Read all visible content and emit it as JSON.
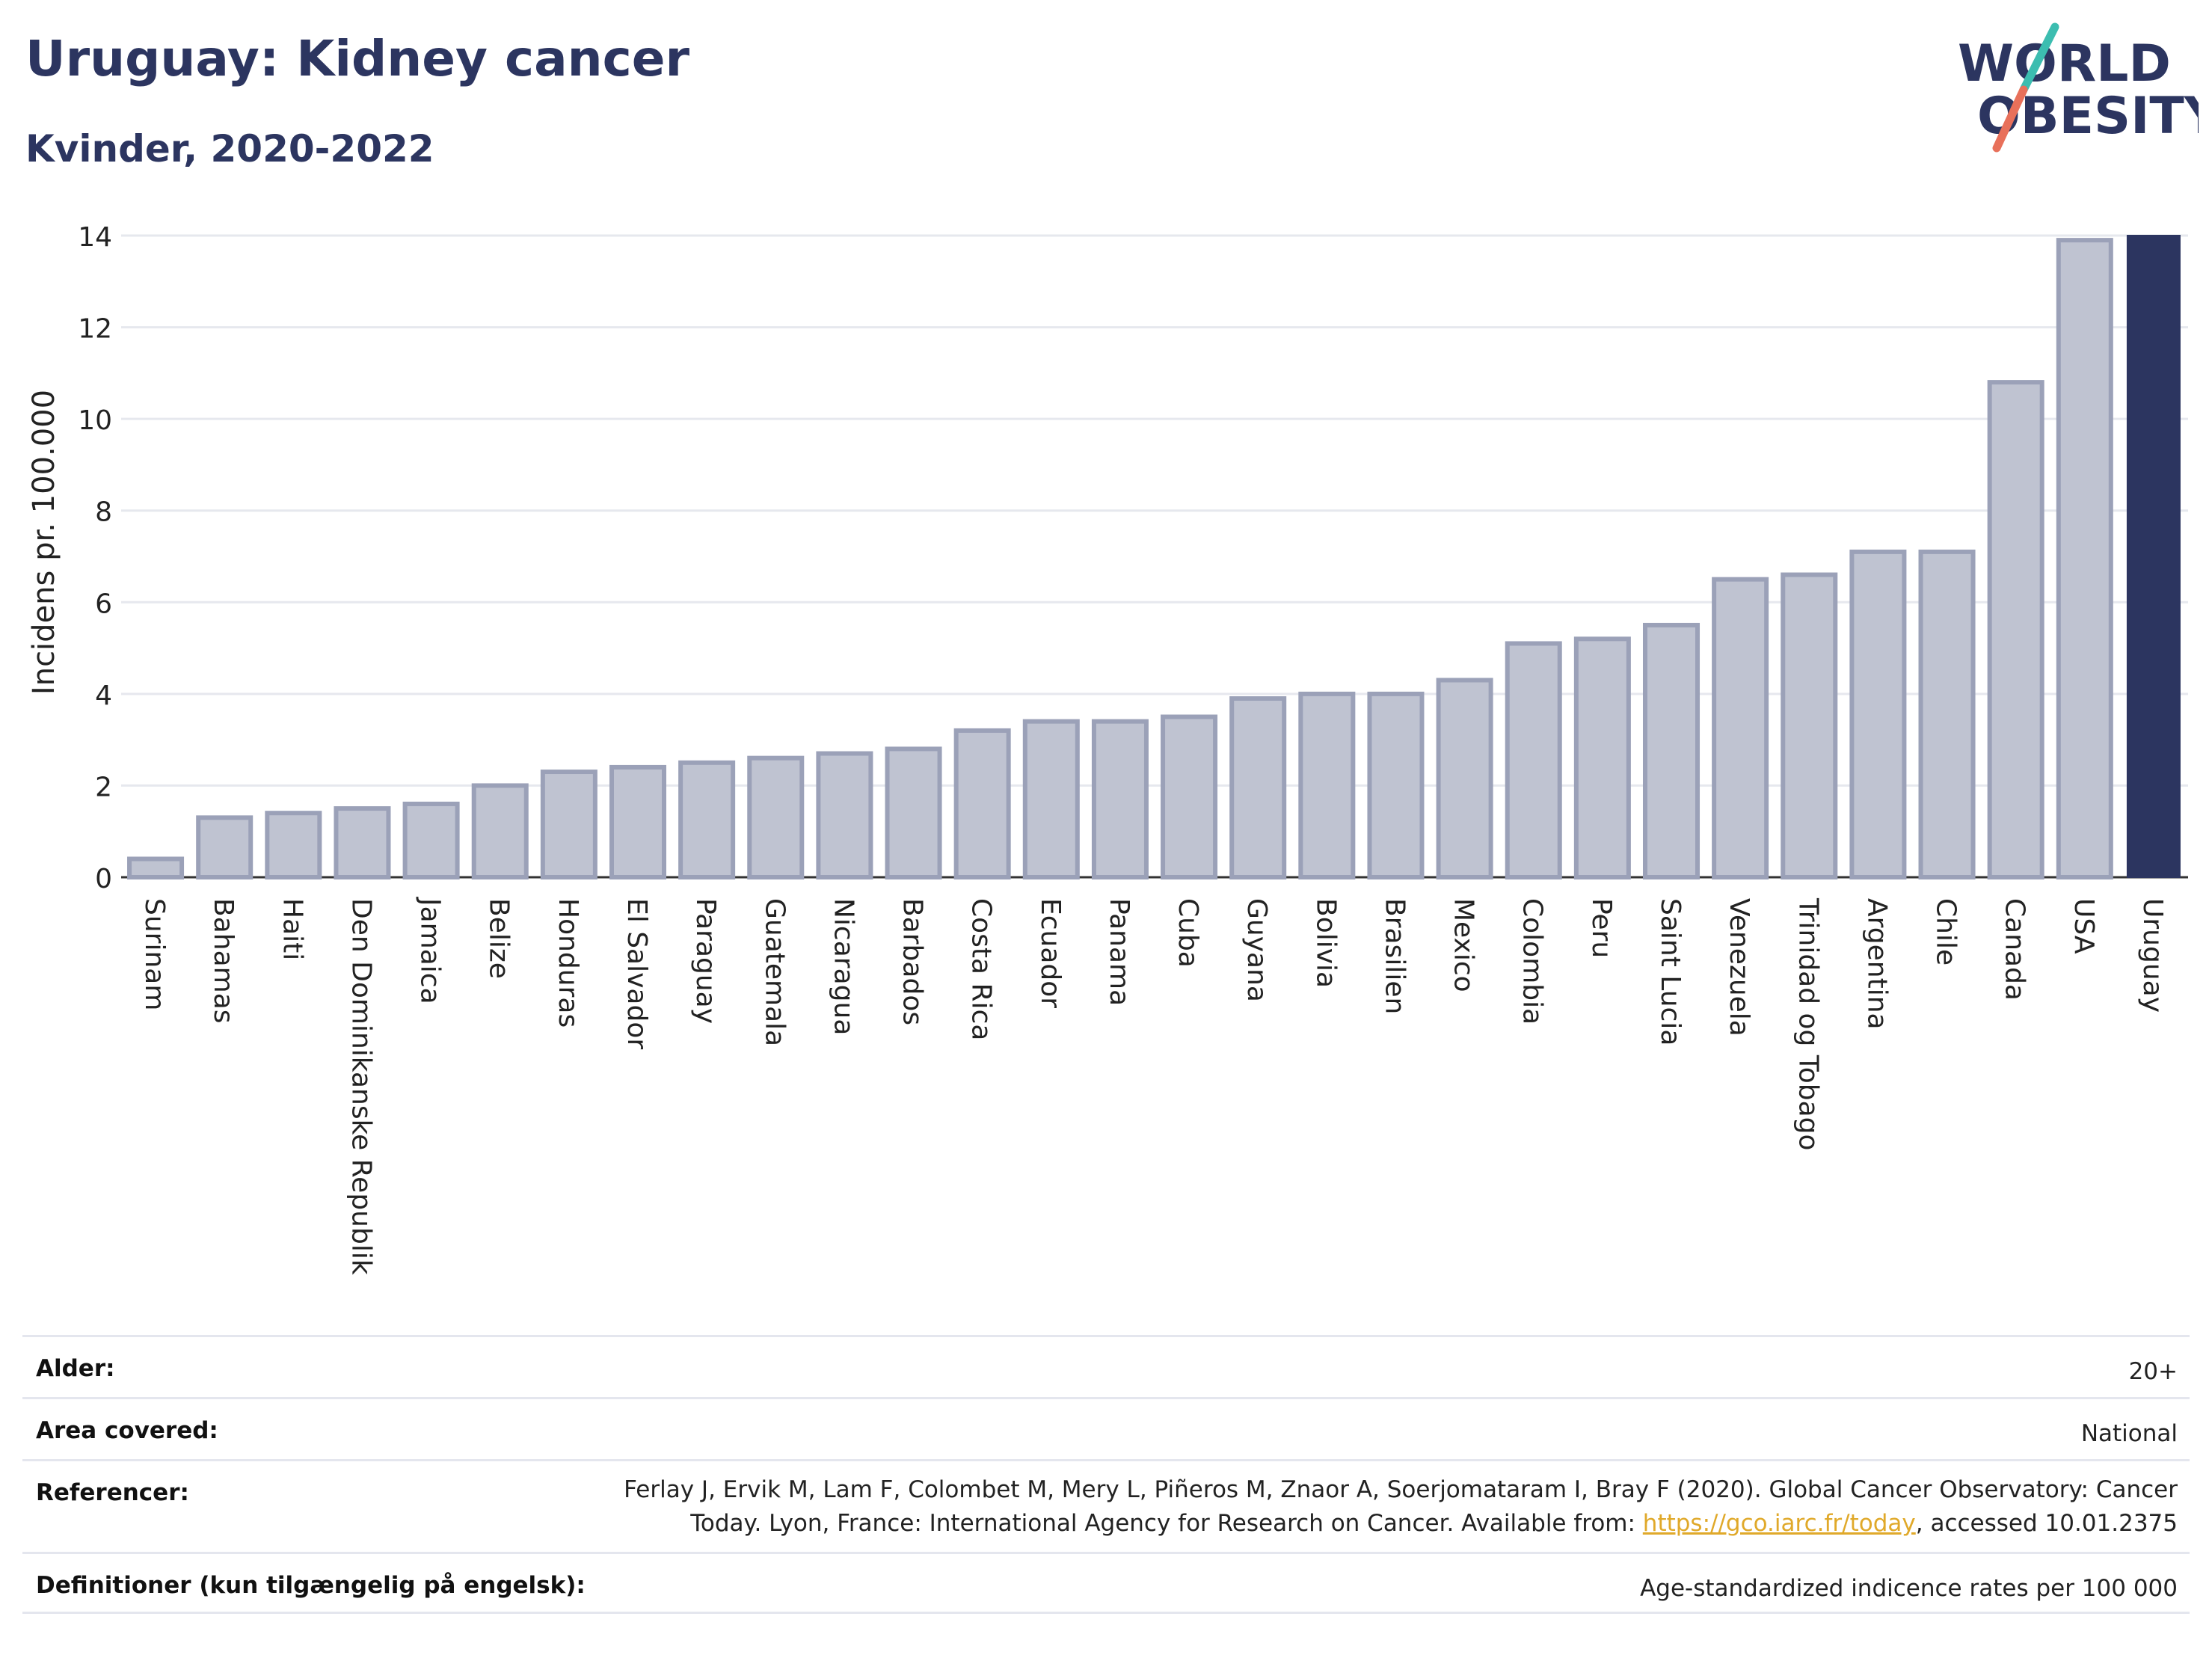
{
  "header": {
    "title": "Uruguay: Kidney cancer",
    "subtitle": "Kvinder, 2020-2022",
    "logo_line1": "WORLD",
    "logo_line2": "OBESITY"
  },
  "colors": {
    "title": "#2c3560",
    "bar": "#bfc3d1",
    "bar_edge": "#9ba1b8",
    "highlight": "#2c3560",
    "grid": "#e6e8ee",
    "logo_teal": "#3cbdb0",
    "logo_coral": "#e8705a"
  },
  "chart_data": {
    "type": "bar",
    "title": "Uruguay: Kidney cancer",
    "subtitle": "Kvinder, 2020-2022",
    "xlabel": "",
    "ylabel": "Incidens pr. 100.000",
    "ylim": [
      0,
      14
    ],
    "yticks": [
      0,
      2,
      4,
      6,
      8,
      10,
      12,
      14
    ],
    "grid": true,
    "highlight": "Uruguay",
    "categories": [
      "Surinam",
      "Bahamas",
      "Haiti",
      "Den Dominikanske Republik",
      "Jamaica",
      "Belize",
      "Honduras",
      "El Salvador",
      "Paraguay",
      "Guatemala",
      "Nicaragua",
      "Barbados",
      "Costa Rica",
      "Ecuador",
      "Panama",
      "Cuba",
      "Guyana",
      "Bolivia",
      "Brasilien",
      "Mexico",
      "Colombia",
      "Peru",
      "Saint Lucia",
      "Venezuela",
      "Trinidad og Tobago",
      "Argentina",
      "Chile",
      "Canada",
      "USA",
      "Uruguay"
    ],
    "values": [
      0.4,
      1.3,
      1.4,
      1.5,
      1.6,
      2.0,
      2.3,
      2.4,
      2.5,
      2.6,
      2.7,
      2.8,
      3.2,
      3.4,
      3.4,
      3.5,
      3.9,
      4.0,
      4.0,
      4.3,
      5.1,
      5.2,
      5.5,
      6.5,
      6.6,
      7.1,
      7.1,
      10.8,
      13.9,
      14.0
    ]
  },
  "meta": {
    "age_label": "Alder:",
    "age_value": "20+",
    "area_label": "Area covered:",
    "area_value": "National",
    "ref_label": "Referencer:",
    "ref_line1": "Ferlay J, Ervik M, Lam F, Colombet M, Mery L, Piñeros M, Znaor A, Soerjomataram I, Bray F (2020). Global Cancer Observatory: Cancer",
    "ref_line2_pre": "Today. Lyon, France: International Agency for Research on Cancer. Available from: ",
    "ref_link": "https://gco.iarc.fr/today",
    "ref_line2_post": ", accessed 10.01.2375",
    "def_label": "Definitioner (kun tilgængelig på engelsk):",
    "def_value": "Age-standardized indicence rates per 100 000"
  }
}
